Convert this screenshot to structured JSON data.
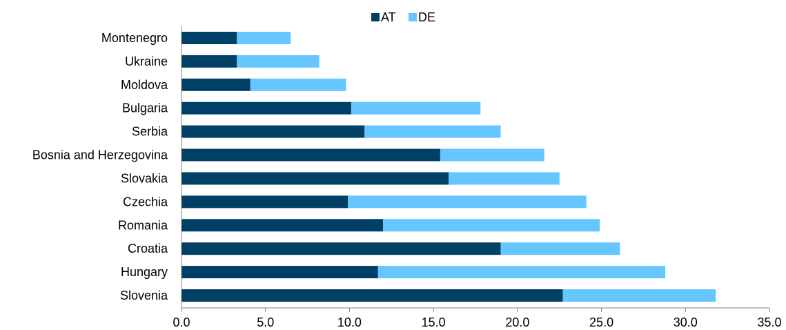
{
  "chart_data": {
    "type": "bar",
    "orientation": "horizontal",
    "stacked": true,
    "categories": [
      "Montenegro",
      "Ukraine",
      "Moldova",
      "Bulgaria",
      "Serbia",
      "Bosnia and Herzegovina",
      "Slovakia",
      "Czechia",
      "Romania",
      "Croatia",
      "Hungary",
      "Slovenia"
    ],
    "series": [
      {
        "name": "AT",
        "color": "#003F66",
        "values": [
          3.3,
          3.3,
          4.1,
          10.1,
          10.9,
          15.4,
          15.9,
          9.9,
          12.0,
          19.0,
          11.7,
          22.7
        ]
      },
      {
        "name": "DE",
        "color": "#66C6FF",
        "values": [
          3.2,
          4.9,
          5.7,
          7.7,
          8.1,
          6.2,
          6.6,
          14.2,
          12.9,
          7.1,
          17.1,
          9.1
        ]
      }
    ],
    "xlim": [
      0,
      35
    ],
    "xticks": [
      "0.0",
      "5.0",
      "10.0",
      "15.0",
      "20.0",
      "25.0",
      "30.0",
      "35.0"
    ],
    "legend_position": "top-center",
    "grid": false
  }
}
